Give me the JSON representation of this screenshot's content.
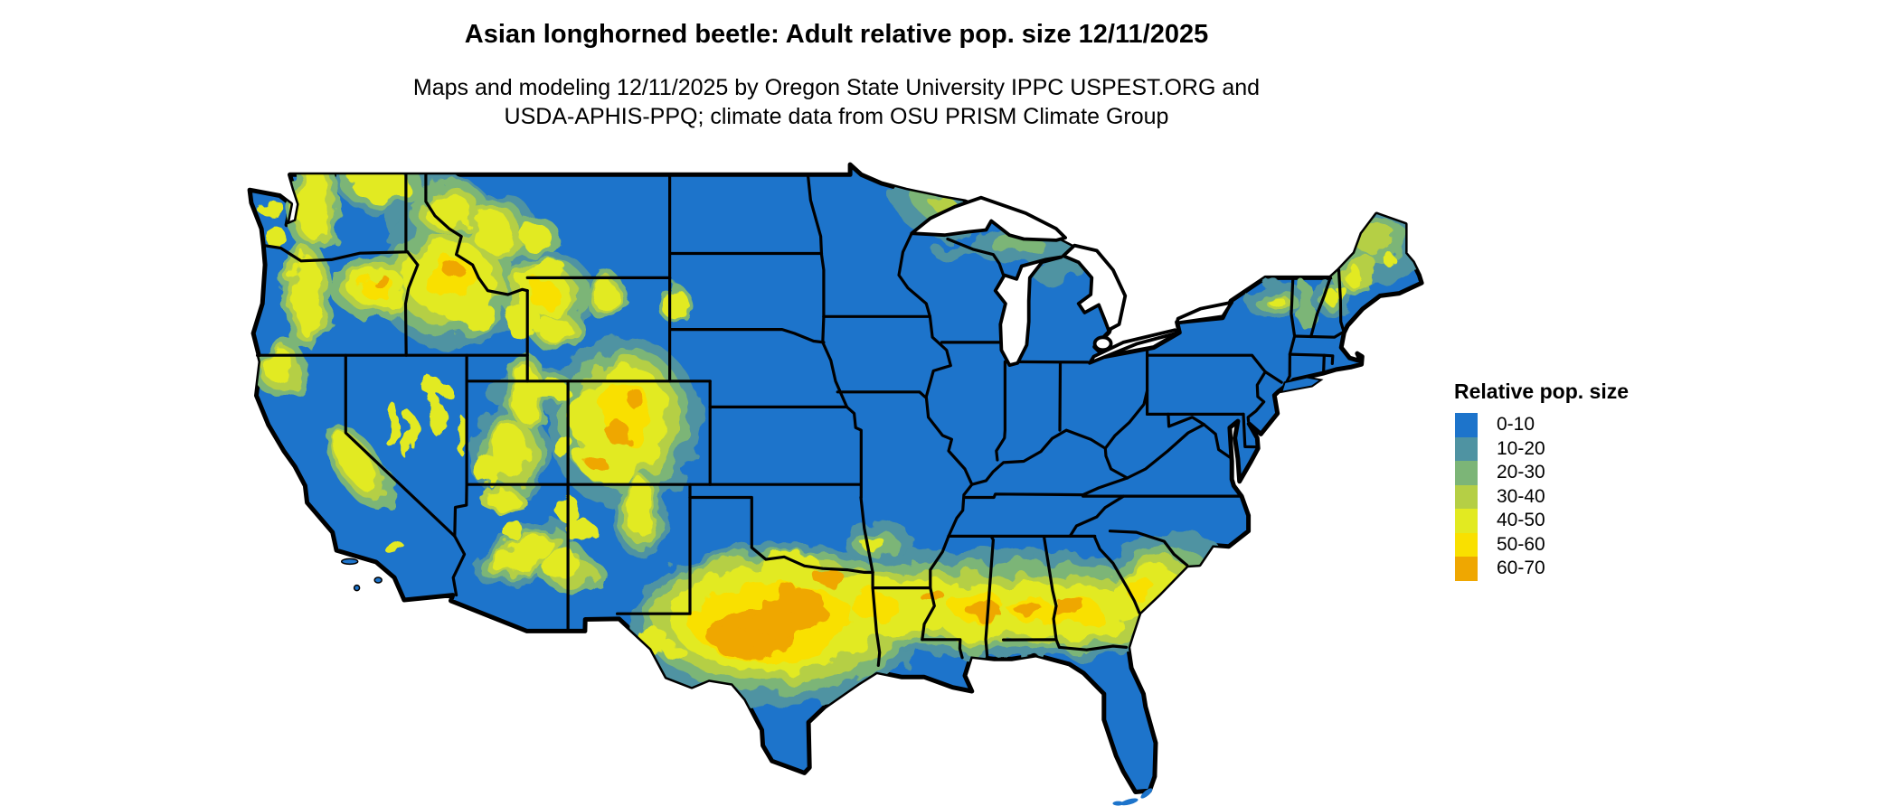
{
  "header": {
    "title": "Asian longhorned beetle: Adult relative pop. size 12/11/2025",
    "subtitle_line1": "Maps and modeling 12/11/2025 by Oregon State University IPPC USPEST.ORG and",
    "subtitle_line2": "USDA-APHIS-PPQ; climate data from OSU PRISM Climate Group"
  },
  "map": {
    "name": "Contiguous United States relative population raster",
    "base_color": "#1d74cb",
    "border_color": "#000000",
    "water_color": "#ffffff"
  },
  "legend": {
    "title": "Relative pop. size",
    "items": [
      {
        "label": "0-10",
        "color": "#1d74cb"
      },
      {
        "label": "10-20",
        "color": "#4f93a2"
      },
      {
        "label": "20-30",
        "color": "#7cb577"
      },
      {
        "label": "30-40",
        "color": "#b5cf45"
      },
      {
        "label": "40-50",
        "color": "#e2ea21"
      },
      {
        "label": "50-60",
        "color": "#f9e000"
      },
      {
        "label": "60-70",
        "color": "#efa701"
      }
    ]
  }
}
